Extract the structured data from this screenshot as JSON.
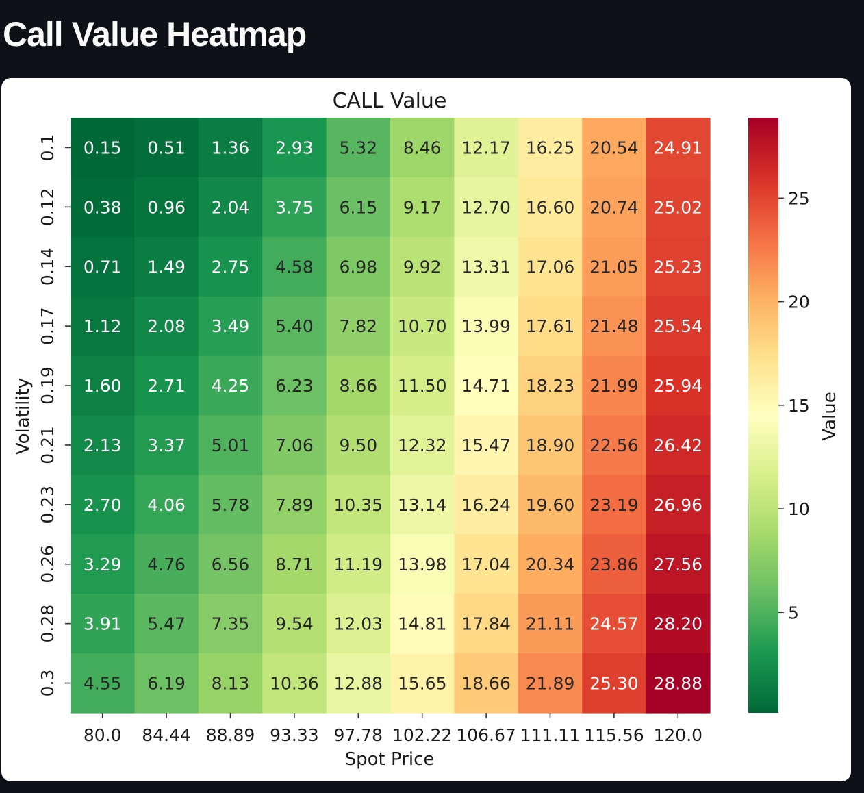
{
  "page": {
    "title": "Call Value Heatmap"
  },
  "chart_data": {
    "type": "heatmap",
    "title": "CALL Value",
    "xlabel": "Spot Price",
    "ylabel": "Volatility",
    "colorbar_label": "Value",
    "colormap": "RdYlGn_r",
    "colormap_stops": [
      "#006837",
      "#1a9850",
      "#66bd63",
      "#a6d96a",
      "#d9ef8b",
      "#ffffbf",
      "#fee08b",
      "#fdae61",
      "#f46d43",
      "#d73027",
      "#a50026"
    ],
    "value_range": [
      0.15,
      28.88
    ],
    "colorbar_ticks": [
      5,
      10,
      15,
      20,
      25
    ],
    "x_tick_labels": [
      "80.0",
      "84.44",
      "88.89",
      "93.33",
      "97.78",
      "102.22",
      "106.67",
      "111.11",
      "115.56",
      "120.0"
    ],
    "y_tick_labels": [
      "0.1",
      "0.12",
      "0.14",
      "0.17",
      "0.19",
      "0.21",
      "0.23",
      "0.26",
      "0.28",
      "0.3"
    ],
    "values": [
      [
        "0.15",
        "0.51",
        "1.36",
        "2.93",
        "5.32",
        "8.46",
        "12.17",
        "16.25",
        "20.54",
        "24.91"
      ],
      [
        "0.38",
        "0.96",
        "2.04",
        "3.75",
        "6.15",
        "9.17",
        "12.70",
        "16.60",
        "20.74",
        "25.02"
      ],
      [
        "0.71",
        "1.49",
        "2.75",
        "4.58",
        "6.98",
        "9.92",
        "13.31",
        "17.06",
        "21.05",
        "25.23"
      ],
      [
        "1.12",
        "2.08",
        "3.49",
        "5.40",
        "7.82",
        "10.70",
        "13.99",
        "17.61",
        "21.48",
        "25.54"
      ],
      [
        "1.60",
        "2.71",
        "4.25",
        "6.23",
        "8.66",
        "11.50",
        "14.71",
        "18.23",
        "21.99",
        "25.94"
      ],
      [
        "2.13",
        "3.37",
        "5.01",
        "7.06",
        "9.50",
        "12.32",
        "15.47",
        "18.90",
        "22.56",
        "26.42"
      ],
      [
        "2.70",
        "4.06",
        "5.78",
        "7.89",
        "10.35",
        "13.14",
        "16.24",
        "19.60",
        "23.19",
        "26.96"
      ],
      [
        "3.29",
        "4.76",
        "6.56",
        "8.71",
        "11.19",
        "13.98",
        "17.04",
        "20.34",
        "23.86",
        "27.56"
      ],
      [
        "3.91",
        "5.47",
        "7.35",
        "9.54",
        "12.03",
        "14.81",
        "17.84",
        "21.11",
        "24.57",
        "28.20"
      ],
      [
        "4.55",
        "6.19",
        "8.13",
        "10.36",
        "12.88",
        "15.65",
        "18.66",
        "21.89",
        "25.30",
        "28.88"
      ]
    ]
  }
}
